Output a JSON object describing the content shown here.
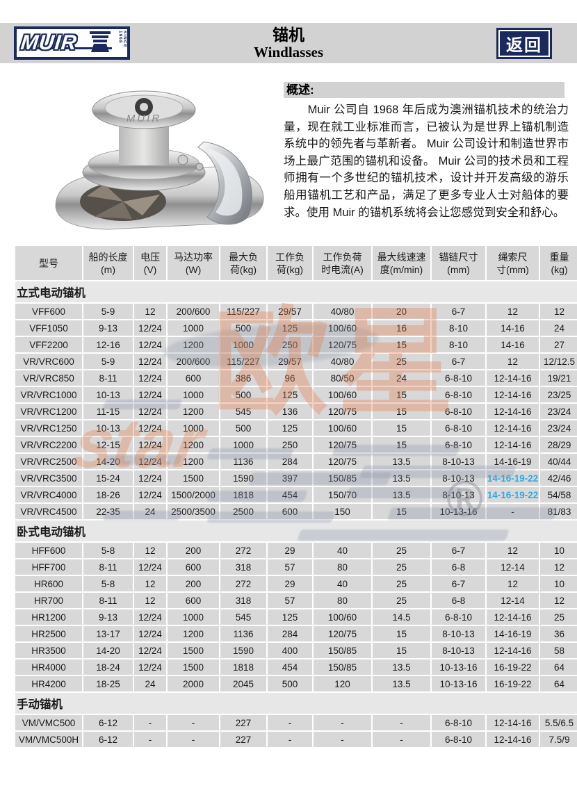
{
  "colors": {
    "navy": "#1b2a5e",
    "cyan": "#29abe2",
    "header_gray": "#d2d2d2",
    "cell_gray": "#d8d8d8",
    "section_gray": "#e7e7e7",
    "watermark_orange": "#e27b49"
  },
  "header": {
    "logo_brand": "MUIR",
    "logo_since": "SINCE 1968",
    "title_zh": "锚机",
    "title_en": "Windlasses",
    "back_label": "返回"
  },
  "overview": {
    "heading": "概述:",
    "body": "Muir 公司自 1968 年后成为澳洲锚机技术的统治力量，现在就工业标准而言，已被认为是世界上锚机制造系统中的领先者与革新者。 Muir 公司设计和制造世界市场上最广范围的锚机和设备。 Muir 公司的技术员和工程师拥有一个多世纪的锚机技术，设计并开发高级的游乐船用锚机工艺和产品，满足了更多专业人士对船体的要求。使用 Muir 的锚机系统将会让您感觉到安全和舒心。"
  },
  "product_image": {
    "cap_text": "MUIR"
  },
  "watermark": {
    "orange_text": "欧星",
    "script_text": "star",
    "registered": "®"
  },
  "table": {
    "columns": [
      [
        "型号"
      ],
      [
        "船的长度",
        "(m)"
      ],
      [
        "电压",
        "(V)"
      ],
      [
        "马达功率",
        "(W)"
      ],
      [
        "最大负",
        "荷(kg)"
      ],
      [
        "工作负",
        "荷(kg)"
      ],
      [
        "工作负荷",
        "时电流(A)"
      ],
      [
        "最大线速速",
        "度(m/min)"
      ],
      [
        "锚链尺寸",
        "(mm)"
      ],
      [
        "绳索尺",
        "寸(mm)"
      ],
      [
        "重量",
        "(kg)"
      ]
    ],
    "highlights": [
      [
        0,
        10,
        9
      ],
      [
        0,
        11,
        9
      ]
    ],
    "sections": [
      {
        "title": "立式电动锚机",
        "rows": [
          [
            "VFF600",
            "5-9",
            "12",
            "200/600",
            "115/227",
            "29/57",
            "40/80",
            "20",
            "6-7",
            "12",
            "12"
          ],
          [
            "VFF1050",
            "9-13",
            "12/24",
            "1000",
            "500",
            "125",
            "100/60",
            "16",
            "8-10",
            "14-16",
            "24"
          ],
          [
            "VFF2200",
            "12-16",
            "12/24",
            "1200",
            "1000",
            "250",
            "120/75",
            "15",
            "8-10",
            "14-16",
            "27"
          ],
          [
            "VR/VRC600",
            "5-9",
            "12/24",
            "200/600",
            "115/227",
            "29/57",
            "40/80",
            "25",
            "6-7",
            "12",
            "12/12.5"
          ],
          [
            "VR/VRC850",
            "8-11",
            "12/24",
            "600",
            "386",
            "96",
            "80/50",
            "24",
            "6-8-10",
            "12-14-16",
            "19/21"
          ],
          [
            "VR/VRC1000",
            "10-13",
            "12/24",
            "1000",
            "500",
            "125",
            "100/60",
            "15",
            "6-8-10",
            "12-14-16",
            "23/25"
          ],
          [
            "VR/VRC1200",
            "11-15",
            "12/24",
            "1200",
            "545",
            "136",
            "120/75",
            "15",
            "6-8-10",
            "12-14-16",
            "23/24"
          ],
          [
            "VR/VRC1250",
            "10-13",
            "12/24",
            "1000",
            "500",
            "125",
            "100/60",
            "15",
            "6-8-10",
            "12-14-16",
            "23/24"
          ],
          [
            "VR/VRC2200",
            "12-15",
            "12/24",
            "1200",
            "1000",
            "250",
            "120/75",
            "15",
            "6-8-10",
            "12-14-16",
            "28/29"
          ],
          [
            "VR/VRC2500",
            "14-20",
            "12/24",
            "1200",
            "1136",
            "284",
            "120/75",
            "13.5",
            "8-10-13",
            "14-16-19",
            "40/44"
          ],
          [
            "VR/VRC3500",
            "15-24",
            "12/24",
            "1500",
            "1590",
            "397",
            "150/85",
            "13.5",
            "8-10-13",
            "14-16-19-22",
            "42/46"
          ],
          [
            "VR/VRC4000",
            "18-26",
            "12/24",
            "1500/2000",
            "1818",
            "454",
            "150/70",
            "13.5",
            "8-10-13",
            "14-16-19-22",
            "54/58"
          ],
          [
            "VR/VRC4500",
            "22-35",
            "24",
            "2500/3500",
            "2500",
            "600",
            "150",
            "15",
            "10-13-16",
            "-",
            "81/83"
          ]
        ]
      },
      {
        "title": "卧式电动锚机",
        "rows": [
          [
            "HFF600",
            "5-8",
            "12",
            "200",
            "272",
            "29",
            "40",
            "25",
            "6-7",
            "12",
            "10"
          ],
          [
            "HFF700",
            "8-11",
            "12/24",
            "600",
            "318",
            "57",
            "80",
            "25",
            "6-8",
            "12-14",
            "12"
          ],
          [
            "HR600",
            "5-8",
            "12",
            "200",
            "272",
            "29",
            "40",
            "25",
            "6-7",
            "12",
            "10"
          ],
          [
            "HR700",
            "8-11",
            "12",
            "600",
            "318",
            "57",
            "80",
            "25",
            "6-8",
            "12-14",
            "12"
          ],
          [
            "HR1200",
            "9-13",
            "12/24",
            "1000",
            "545",
            "125",
            "100/60",
            "14.5",
            "6-8-10",
            "12-14-16",
            "25"
          ],
          [
            "HR2500",
            "13-17",
            "12/24",
            "1200",
            "1136",
            "284",
            "120/75",
            "15",
            "8-10-13",
            "14-16-19",
            "36"
          ],
          [
            "HR3500",
            "14-20",
            "12/24",
            "1500",
            "1590",
            "400",
            "150/85",
            "15",
            "8-10-13",
            "12-14-16",
            "58"
          ],
          [
            "HR4000",
            "18-24",
            "12/24",
            "1500",
            "1818",
            "454",
            "150/85",
            "13.5",
            "10-13-16",
            "16-19-22",
            "64"
          ],
          [
            "HR4200",
            "18-25",
            "24",
            "2000",
            "2045",
            "500",
            "120",
            "13.5",
            "10-13-16",
            "16-19-22",
            "64"
          ]
        ]
      },
      {
        "title": "手动锚机",
        "rows": [
          [
            "VM/VMC500",
            "6-12",
            "-",
            "-",
            "227",
            "-",
            "-",
            "-",
            "6-8-10",
            "12-14-16",
            "5.5/6.5"
          ],
          [
            "VM/VMC500H",
            "6-12",
            "-",
            "-",
            "227",
            "-",
            "-",
            "-",
            "6-8-10",
            "12-14-16",
            "7.5/9"
          ]
        ]
      }
    ]
  }
}
